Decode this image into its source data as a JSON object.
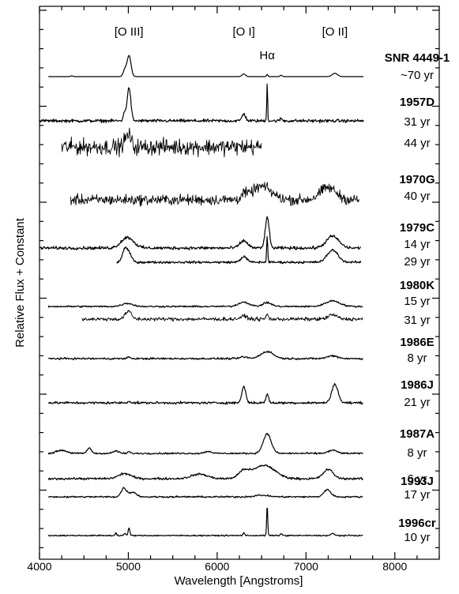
{
  "chart_data": {
    "type": "line",
    "xlabel": "Wavelength [Angstroms]",
    "ylabel": "Relative Flux + Constant",
    "xlim": [
      4000,
      8500
    ],
    "x_ticks": [
      "4000",
      "5000",
      "6000",
      "7000",
      "8000"
    ],
    "annotations": [
      {
        "text": "[O III]",
        "x": 5007
      },
      {
        "text": "[O I]",
        "x": 6300
      },
      {
        "text": "Hα",
        "x": 6563
      },
      {
        "text": "[O II]",
        "x": 7325
      }
    ],
    "groups": [
      {
        "name": "SNR 4449-1",
        "ages": [
          "~70 yr"
        ]
      },
      {
        "name": "1957D",
        "ages": [
          "31 yr",
          "44 yr"
        ]
      },
      {
        "name": "1970G",
        "ages": [
          "40 yr"
        ]
      },
      {
        "name": "1979C",
        "ages": [
          "14 yr",
          "29 yr"
        ]
      },
      {
        "name": "1980K",
        "ages": [
          "15 yr",
          "31 yr"
        ]
      },
      {
        "name": "1986E",
        "ages": [
          "8 yr"
        ]
      },
      {
        "name": "1986J",
        "ages": [
          "21 yr"
        ]
      },
      {
        "name": "1987A",
        "ages": [
          "8 yr"
        ]
      },
      {
        "name": "1993J",
        "ages": [
          "6 yr",
          "17 yr"
        ]
      },
      {
        "name": "1996cr",
        "ages": [
          "10 yr"
        ]
      }
    ],
    "series": [
      {
        "group": "SNR 4449-1",
        "age": "~70 yr",
        "x_range": [
          4100,
          7650
        ],
        "baseline": 0.0,
        "noise": 0.0,
        "lines": [
          {
            "x": 4960,
            "h": 0.3,
            "w": 18
          },
          {
            "x": 5008,
            "h": 0.95,
            "w": 22
          },
          {
            "x": 6300,
            "h": 0.12,
            "w": 20
          },
          {
            "x": 6563,
            "h": 0.1,
            "w": 8
          },
          {
            "x": 6720,
            "h": 0.06,
            "w": 12
          },
          {
            "x": 7325,
            "h": 0.15,
            "w": 30
          },
          {
            "x": 4363,
            "h": 0.04,
            "w": 12
          }
        ]
      },
      {
        "group": "1957D",
        "age": "31 yr",
        "x_range": [
          4000,
          7650
        ],
        "baseline": 0.0,
        "noise": 0.05,
        "lines": [
          {
            "x": 4960,
            "h": 0.35,
            "w": 16
          },
          {
            "x": 5008,
            "h": 1.4,
            "w": 20
          },
          {
            "x": 6300,
            "h": 0.3,
            "w": 20
          },
          {
            "x": 6563,
            "h": 1.6,
            "w": 5
          },
          {
            "x": 6720,
            "h": 0.1,
            "w": 12
          }
        ]
      },
      {
        "group": "1957D",
        "age": "44 yr",
        "x_range": [
          4250,
          6500
        ],
        "baseline": 0.0,
        "noise": 0.35,
        "lines": [
          {
            "x": 4960,
            "h": 0.35,
            "w": 20
          },
          {
            "x": 5008,
            "h": 0.7,
            "w": 22
          }
        ]
      },
      {
        "group": "1970G",
        "age": "40 yr",
        "x_range": [
          4350,
          7600
        ],
        "baseline": 0.0,
        "noise": 0.18,
        "lines": [
          {
            "x": 6500,
            "h": 0.6,
            "w": 110
          },
          {
            "x": 7250,
            "h": 0.55,
            "w": 90
          },
          {
            "x": 6300,
            "h": 0.2,
            "w": 30
          }
        ]
      },
      {
        "group": "1979C",
        "age": "14 yr",
        "x_range": [
          4000,
          7620
        ],
        "baseline": 0.0,
        "noise": 0.05,
        "lines": [
          {
            "x": 4990,
            "h": 0.45,
            "w": 70
          },
          {
            "x": 6300,
            "h": 0.3,
            "w": 45
          },
          {
            "x": 6563,
            "h": 1.3,
            "w": 22
          },
          {
            "x": 7300,
            "h": 0.5,
            "w": 70
          }
        ]
      },
      {
        "group": "1979C",
        "age": "29 yr",
        "x_range": [
          4870,
          7620
        ],
        "baseline": 0.0,
        "noise": 0.04,
        "lines": [
          {
            "x": 4960,
            "h": 0.55,
            "w": 28
          },
          {
            "x": 5010,
            "h": 0.35,
            "w": 30
          },
          {
            "x": 6300,
            "h": 0.25,
            "w": 35
          },
          {
            "x": 6563,
            "h": 1.2,
            "w": 6
          },
          {
            "x": 7300,
            "h": 0.55,
            "w": 60
          }
        ]
      },
      {
        "group": "1980K",
        "age": "15 yr",
        "x_range": [
          4100,
          7640
        ],
        "baseline": 0.0,
        "noise": 0.05,
        "lines": [
          {
            "x": 4990,
            "h": 0.25,
            "w": 60
          },
          {
            "x": 6300,
            "h": 0.35,
            "w": 60
          },
          {
            "x": 6563,
            "h": 0.3,
            "w": 50
          },
          {
            "x": 7300,
            "h": 0.45,
            "w": 80
          }
        ]
      },
      {
        "group": "1980K",
        "age": "31 yr",
        "x_range": [
          4480,
          7640
        ],
        "baseline": 0.0,
        "noise": 0.1,
        "lines": [
          {
            "x": 5000,
            "h": 0.55,
            "w": 35
          },
          {
            "x": 6300,
            "h": 0.2,
            "w": 40
          },
          {
            "x": 6563,
            "h": 0.35,
            "w": 12
          },
          {
            "x": 7300,
            "h": 0.3,
            "w": 50
          }
        ]
      },
      {
        "group": "1986E",
        "age": "8 yr",
        "x_range": [
          4100,
          7640
        ],
        "baseline": 0.0,
        "noise": 0.05,
        "lines": [
          {
            "x": 5008,
            "h": 0.15,
            "w": 12
          },
          {
            "x": 6300,
            "h": 0.12,
            "w": 40
          },
          {
            "x": 6563,
            "h": 0.5,
            "w": 70
          },
          {
            "x": 7300,
            "h": 0.2,
            "w": 60
          }
        ]
      },
      {
        "group": "1986J",
        "age": "21 yr",
        "x_range": [
          4100,
          7640
        ],
        "baseline": 0.0,
        "noise": 0.04,
        "lines": [
          {
            "x": 6300,
            "h": 0.75,
            "w": 22
          },
          {
            "x": 6563,
            "h": 0.4,
            "w": 15
          },
          {
            "x": 7325,
            "h": 0.85,
            "w": 35
          },
          {
            "x": 5008,
            "h": 0.08,
            "w": 15
          }
        ]
      },
      {
        "group": "1987A",
        "age": "8 yr",
        "x_range": [
          4100,
          7640
        ],
        "baseline": 0.0,
        "noise": 0.03,
        "lines": [
          {
            "x": 4250,
            "h": 0.15,
            "w": 60
          },
          {
            "x": 4560,
            "h": 0.25,
            "w": 25
          },
          {
            "x": 4860,
            "h": 0.12,
            "w": 30
          },
          {
            "x": 5008,
            "h": 0.08,
            "w": 15
          },
          {
            "x": 5900,
            "h": 0.1,
            "w": 40
          },
          {
            "x": 6563,
            "h": 0.95,
            "w": 45
          },
          {
            "x": 7300,
            "h": 0.15,
            "w": 50
          }
        ]
      },
      {
        "group": "1993J",
        "age": "6 yr",
        "x_range": [
          4100,
          7640
        ],
        "baseline": 0.0,
        "noise": 0.04,
        "lines": [
          {
            "x": 4960,
            "h": 0.25,
            "w": 70
          },
          {
            "x": 5800,
            "h": 0.22,
            "w": 90
          },
          {
            "x": 6300,
            "h": 0.35,
            "w": 60
          },
          {
            "x": 6530,
            "h": 0.65,
            "w": 120
          },
          {
            "x": 7250,
            "h": 0.45,
            "w": 55
          }
        ]
      },
      {
        "group": "1993J",
        "age": "17 yr",
        "x_range": [
          4100,
          7640
        ],
        "baseline": 0.0,
        "noise": 0.04,
        "lines": [
          {
            "x": 4950,
            "h": 0.55,
            "w": 30
          },
          {
            "x": 5050,
            "h": 0.3,
            "w": 40
          },
          {
            "x": 7240,
            "h": 0.45,
            "w": 40
          },
          {
            "x": 6500,
            "h": 0.1,
            "w": 80
          }
        ]
      },
      {
        "group": "1996cr",
        "age": "10 yr",
        "x_range": [
          4100,
          7640
        ],
        "baseline": 0.0,
        "noise": 0.02,
        "lines": [
          {
            "x": 4860,
            "h": 0.12,
            "w": 8
          },
          {
            "x": 4960,
            "h": 0.1,
            "w": 10
          },
          {
            "x": 5008,
            "h": 0.3,
            "w": 10
          },
          {
            "x": 6300,
            "h": 0.12,
            "w": 10
          },
          {
            "x": 6563,
            "h": 1.3,
            "w": 6
          },
          {
            "x": 6720,
            "h": 0.08,
            "w": 10
          },
          {
            "x": 7300,
            "h": 0.08,
            "w": 20
          }
        ]
      }
    ]
  }
}
